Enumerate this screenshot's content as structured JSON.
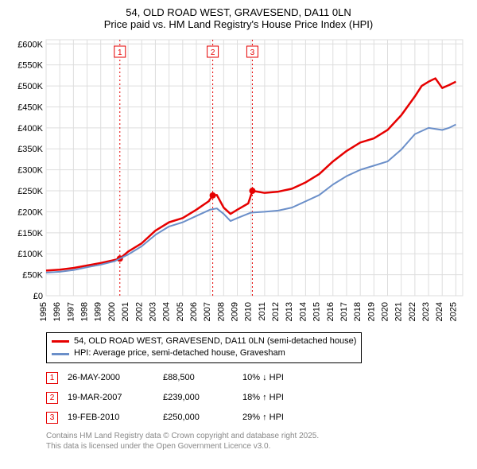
{
  "title_line1": "54, OLD ROAD WEST, GRAVESEND, DA11 0LN",
  "title_line2": "Price paid vs. HM Land Registry's House Price Index (HPI)",
  "chart": {
    "type": "line",
    "background_color": "#ffffff",
    "grid_color": "#dddddd",
    "axis_color": "#000000",
    "label_fontsize": 11,
    "title_fontsize": 13,
    "x_years": [
      1995,
      1996,
      1997,
      1998,
      1999,
      2000,
      2001,
      2002,
      2003,
      2004,
      2005,
      2006,
      2007,
      2008,
      2009,
      2010,
      2011,
      2012,
      2013,
      2014,
      2015,
      2016,
      2017,
      2018,
      2019,
      2020,
      2021,
      2022,
      2023,
      2024,
      2025
    ],
    "y_ticks": [
      0,
      50000,
      100000,
      150000,
      200000,
      250000,
      300000,
      350000,
      400000,
      450000,
      500000,
      550000,
      600000
    ],
    "y_tick_labels": [
      "£0",
      "£50K",
      "£100K",
      "£150K",
      "£200K",
      "£250K",
      "£300K",
      "£350K",
      "£400K",
      "£450K",
      "£500K",
      "£550K",
      "£600K"
    ],
    "xlim": [
      1995,
      2025.5
    ],
    "ylim": [
      0,
      610000
    ],
    "series": [
      {
        "name": "price_paid",
        "color": "#e60000",
        "line_width": 2.5,
        "points": [
          [
            1995,
            60000
          ],
          [
            1996,
            62000
          ],
          [
            1997,
            66000
          ],
          [
            1998,
            72000
          ],
          [
            1999,
            78000
          ],
          [
            2000,
            85000
          ],
          [
            2000.4,
            88500
          ],
          [
            2001,
            105000
          ],
          [
            2002,
            125000
          ],
          [
            2003,
            155000
          ],
          [
            2004,
            175000
          ],
          [
            2005,
            185000
          ],
          [
            2006,
            205000
          ],
          [
            2006.9,
            225000
          ],
          [
            2007.2,
            239000
          ],
          [
            2007.5,
            240000
          ],
          [
            2008,
            210000
          ],
          [
            2008.5,
            195000
          ],
          [
            2009,
            205000
          ],
          [
            2009.8,
            220000
          ],
          [
            2010.1,
            250000
          ],
          [
            2011,
            245000
          ],
          [
            2012,
            248000
          ],
          [
            2013,
            255000
          ],
          [
            2014,
            270000
          ],
          [
            2015,
            290000
          ],
          [
            2016,
            320000
          ],
          [
            2017,
            345000
          ],
          [
            2018,
            365000
          ],
          [
            2019,
            375000
          ],
          [
            2020,
            395000
          ],
          [
            2021,
            430000
          ],
          [
            2022,
            475000
          ],
          [
            2022.5,
            500000
          ],
          [
            2023,
            510000
          ],
          [
            2023.5,
            518000
          ],
          [
            2024,
            495000
          ],
          [
            2024.5,
            502000
          ],
          [
            2025,
            510000
          ]
        ],
        "sale_markers": [
          {
            "x": 2000.4,
            "y": 88500
          },
          {
            "x": 2007.2,
            "y": 239000
          },
          {
            "x": 2010.1,
            "y": 250000
          }
        ],
        "marker_radius": 4
      },
      {
        "name": "hpi",
        "color": "#6b8fc9",
        "line_width": 2,
        "points": [
          [
            1995,
            55000
          ],
          [
            1996,
            57000
          ],
          [
            1997,
            61000
          ],
          [
            1998,
            68000
          ],
          [
            1999,
            74000
          ],
          [
            2000,
            82000
          ],
          [
            2001,
            98000
          ],
          [
            2002,
            118000
          ],
          [
            2003,
            145000
          ],
          [
            2004,
            165000
          ],
          [
            2005,
            175000
          ],
          [
            2006,
            190000
          ],
          [
            2007,
            205000
          ],
          [
            2007.5,
            208000
          ],
          [
            2008,
            195000
          ],
          [
            2008.5,
            178000
          ],
          [
            2009,
            185000
          ],
          [
            2010,
            198000
          ],
          [
            2011,
            200000
          ],
          [
            2012,
            203000
          ],
          [
            2013,
            210000
          ],
          [
            2014,
            225000
          ],
          [
            2015,
            240000
          ],
          [
            2016,
            265000
          ],
          [
            2017,
            285000
          ],
          [
            2018,
            300000
          ],
          [
            2019,
            310000
          ],
          [
            2020,
            320000
          ],
          [
            2021,
            348000
          ],
          [
            2022,
            385000
          ],
          [
            2023,
            400000
          ],
          [
            2024,
            395000
          ],
          [
            2024.5,
            400000
          ],
          [
            2025,
            408000
          ]
        ]
      }
    ],
    "event_lines": [
      {
        "x": 2000.4,
        "label": "1",
        "color": "#e60000",
        "dash": "2,3"
      },
      {
        "x": 2007.2,
        "label": "2",
        "color": "#e60000",
        "dash": "2,3"
      },
      {
        "x": 2010.1,
        "label": "3",
        "color": "#e60000",
        "dash": "2,3"
      }
    ]
  },
  "legend": {
    "items": [
      {
        "color": "#e60000",
        "label": "54, OLD ROAD WEST, GRAVESEND, DA11 0LN (semi-detached house)"
      },
      {
        "color": "#6b8fc9",
        "label": "HPI: Average price, semi-detached house, Gravesham"
      }
    ]
  },
  "events_table": {
    "rows": [
      {
        "num": "1",
        "date": "26-MAY-2000",
        "price": "£88,500",
        "delta": "10% ↓ HPI"
      },
      {
        "num": "2",
        "date": "19-MAR-2007",
        "price": "£239,000",
        "delta": "18% ↑ HPI"
      },
      {
        "num": "3",
        "date": "19-FEB-2010",
        "price": "£250,000",
        "delta": "29% ↑ HPI"
      }
    ]
  },
  "footer": {
    "line1": "Contains HM Land Registry data © Crown copyright and database right 2025.",
    "line2": "This data is licensed under the Open Government Licence v3.0."
  }
}
